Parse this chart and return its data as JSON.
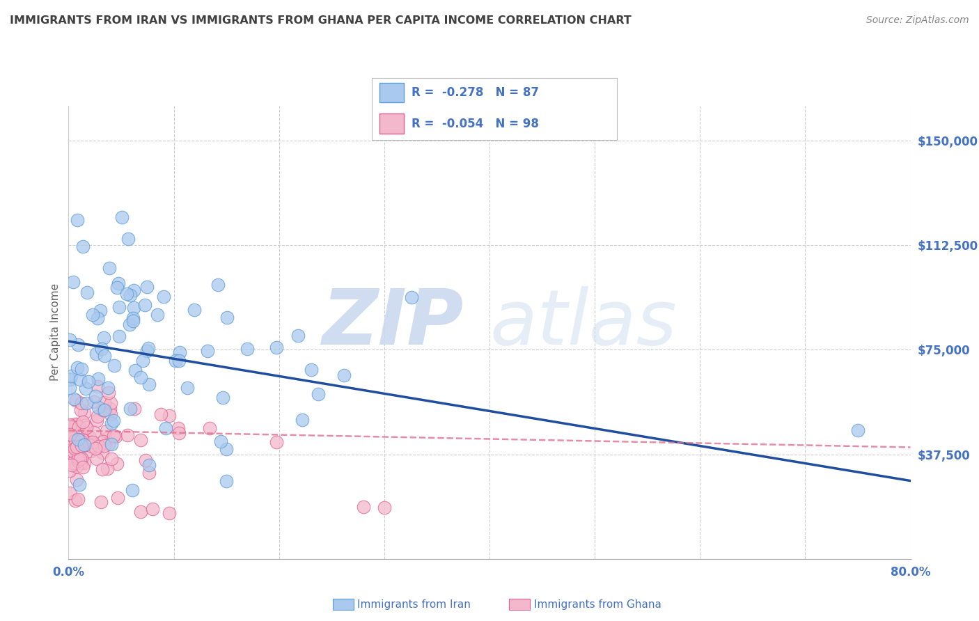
{
  "title": "IMMIGRANTS FROM IRAN VS IMMIGRANTS FROM GHANA PER CAPITA INCOME CORRELATION CHART",
  "source": "Source: ZipAtlas.com",
  "ylabel": "Per Capita Income",
  "xlim": [
    0.0,
    0.8
  ],
  "ylim": [
    0,
    162500
  ],
  "yticks": [
    0,
    37500,
    75000,
    112500,
    150000
  ],
  "ytick_labels": [
    "",
    "$37,500",
    "$75,000",
    "$112,500",
    "$150,000"
  ],
  "xticks": [
    0.0,
    0.1,
    0.2,
    0.3,
    0.4,
    0.5,
    0.6,
    0.7,
    0.8
  ],
  "xtick_labels": [
    "0.0%",
    "",
    "",
    "",
    "",
    "",
    "",
    "",
    "80.0%"
  ],
  "iran_color": "#aac9ee",
  "iran_edge_color": "#5b9bd5",
  "ghana_color": "#f4b8cc",
  "ghana_edge_color": "#e06090",
  "iran_R": -0.278,
  "iran_N": 87,
  "ghana_R": -0.054,
  "ghana_N": 98,
  "iran_line_color": "#1f4e9e",
  "ghana_line_color": "#e07090",
  "legend_label_iran": "Immigrants from Iran",
  "legend_label_ghana": "Immigrants from Ghana",
  "watermark_zip": "ZIP",
  "watermark_atlas": "atlas",
  "background_color": "#ffffff",
  "grid_color": "#cccccc",
  "title_color": "#404040",
  "axis_label_color": "#606060",
  "tick_color": "#4472c4",
  "legend_text_color": "#4472c4",
  "source_color": "#888888",
  "iran_line_y0": 78000,
  "iran_line_y1": 28000,
  "ghana_line_y0": 46000,
  "ghana_line_y1": 40000
}
